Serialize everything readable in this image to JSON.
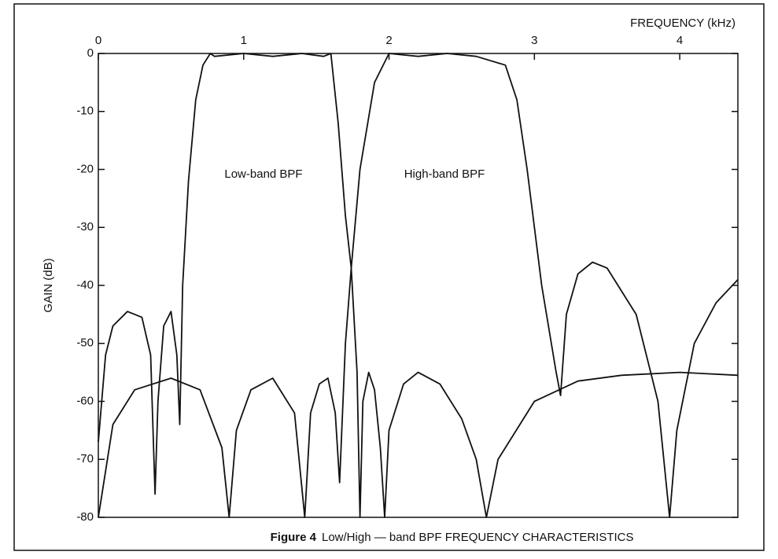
{
  "chart_data": {
    "type": "line",
    "caption_label": "Figure 4",
    "caption": "Low/High — band BPF FREQUENCY CHARACTERISTICS",
    "x_label": "FREQUENCY (kHz)",
    "y_label": "GAIN (dB)",
    "annotations": [
      "Low-band BPF",
      "High-band BPF"
    ],
    "xlim": [
      0,
      4.4
    ],
    "xticks": [
      0,
      1,
      2,
      3,
      4
    ],
    "ylim": [
      -80,
      0
    ],
    "yticks": [
      0,
      -10,
      -20,
      -30,
      -40,
      -50,
      -60,
      -70,
      -80
    ],
    "color": "#111111",
    "series": [
      {
        "x": [
          0,
          0.05,
          0.1,
          0.2,
          0.3,
          0.36,
          0.39,
          0.41,
          0.45,
          0.5,
          0.54,
          0.56,
          0.58,
          0.62,
          0.67,
          0.72,
          0.77,
          0.8,
          1.0,
          1.2,
          1.4,
          1.55,
          1.6,
          1.65,
          1.7,
          1.74,
          1.78,
          1.8,
          1.82,
          1.86,
          1.9,
          1.94,
          1.97,
          2.0,
          2.1,
          2.2,
          2.35,
          2.5,
          2.6,
          2.67,
          2.75,
          3.0,
          3.3,
          3.6,
          4.0,
          4.4
        ],
        "values": [
          -67,
          -52,
          -47,
          -44.5,
          -45.5,
          -52,
          -76,
          -60,
          -47,
          -44.5,
          -52,
          -64,
          -40,
          -22,
          -8,
          -2,
          0,
          -0.5,
          0,
          -0.5,
          0,
          -0.5,
          0,
          -12,
          -28,
          -37,
          -55,
          -80,
          -60,
          -55,
          -58,
          -68,
          -80,
          -65,
          -57,
          -55,
          -57,
          -63,
          -70,
          -80,
          -70,
          -60,
          -56.5,
          -55.5,
          -55,
          -55.5
        ]
      },
      {
        "x": [
          0,
          0.1,
          0.25,
          0.5,
          0.7,
          0.85,
          0.9,
          0.95,
          1.05,
          1.2,
          1.35,
          1.42,
          1.46,
          1.52,
          1.58,
          1.63,
          1.66,
          1.7,
          1.74,
          1.8,
          1.9,
          2.0,
          2.2,
          2.4,
          2.6,
          2.8,
          2.88,
          2.95,
          3.05,
          3.15,
          3.18,
          3.22,
          3.3,
          3.4,
          3.5,
          3.7,
          3.85,
          3.93,
          3.98,
          4.1,
          4.25,
          4.4
        ],
        "values": [
          -80,
          -64,
          -58,
          -56,
          -58,
          -68,
          -80,
          -65,
          -58,
          -56,
          -62,
          -80,
          -62,
          -57,
          -56,
          -62,
          -74,
          -50,
          -37,
          -20,
          -5,
          0,
          -0.5,
          0,
          -0.5,
          -2,
          -8,
          -20,
          -40,
          -55,
          -59,
          -45,
          -38,
          -36,
          -37,
          -45,
          -60,
          -80,
          -65,
          -50,
          -43,
          -39
        ]
      }
    ]
  }
}
